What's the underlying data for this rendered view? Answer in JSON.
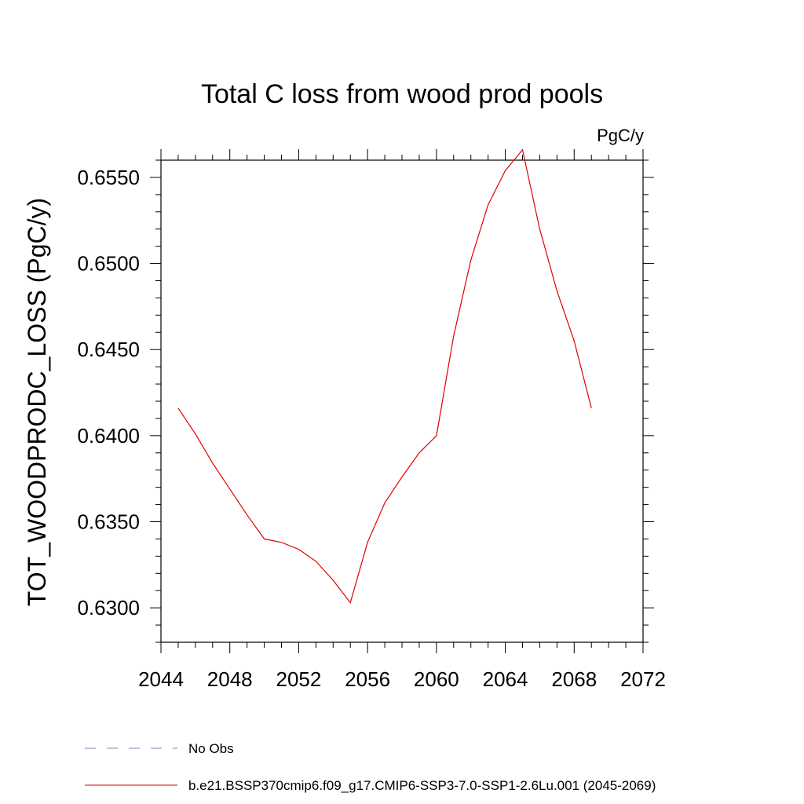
{
  "chart_data": {
    "type": "line",
    "title": "Total C loss from wood prod pools",
    "units_label": "PgC/y",
    "ylabel": "TOT_WOODPRODC_LOSS  (PgC/y)",
    "xlabel": "",
    "xlim": [
      2044,
      2072
    ],
    "ylim": [
      0.628,
      0.656
    ],
    "x_ticks": [
      "2044",
      "2048",
      "2052",
      "2056",
      "2060",
      "2064",
      "2068",
      "2072"
    ],
    "y_ticks": [
      "0.6300",
      "0.6350",
      "0.6400",
      "0.6450",
      "0.6500",
      "0.6550"
    ],
    "grid": false,
    "legend_position": "bottom",
    "legend": [
      {
        "name": "No Obs",
        "style": "dashed",
        "color": "#8080c0"
      },
      {
        "name": "b.e21.BSSP370cmip6.f09_g17.CMIP6-SSP3-7.0-SSP1-2.6Lu.001 (2045-2069)",
        "style": "solid",
        "color": "#e00000"
      }
    ],
    "series": [
      {
        "name": "b.e21.BSSP370cmip6.f09_g17.CMIP6-SSP3-7.0-SSP1-2.6Lu.001 (2045-2069)",
        "color": "#e00000",
        "x": [
          2045,
          2046,
          2047,
          2048,
          2049,
          2050,
          2051,
          2052,
          2053,
          2054,
          2055,
          2056,
          2057,
          2058,
          2059,
          2060,
          2061,
          2062,
          2063,
          2064,
          2065,
          2066,
          2067,
          2068,
          2069
        ],
        "y": [
          0.6416,
          0.6401,
          0.6384,
          0.6369,
          0.6354,
          0.634,
          0.6338,
          0.6334,
          0.6327,
          0.6316,
          0.6303,
          0.6338,
          0.6361,
          0.6376,
          0.639,
          0.64,
          0.6458,
          0.6502,
          0.6534,
          0.6554,
          0.6566,
          0.652,
          0.6484,
          0.6455,
          0.6416
        ]
      }
    ]
  }
}
